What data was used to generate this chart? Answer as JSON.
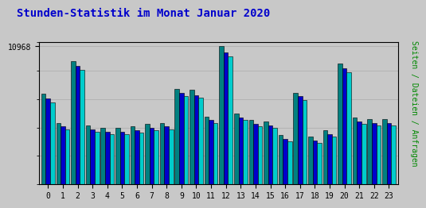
{
  "title": "Stunden-Statistik im Monat Januar 2020",
  "hours": [
    0,
    1,
    2,
    3,
    4,
    5,
    6,
    7,
    8,
    9,
    10,
    11,
    12,
    13,
    14,
    15,
    16,
    17,
    18,
    19,
    20,
    21,
    22,
    23
  ],
  "seiten": [
    7200,
    4900,
    9800,
    4700,
    4500,
    4500,
    4600,
    4800,
    4900,
    7600,
    7500,
    5400,
    10968,
    5600,
    5100,
    5000,
    3900,
    7300,
    3800,
    4300,
    9600,
    5300,
    5200,
    5200
  ],
  "dateien": [
    6800,
    4600,
    9400,
    4400,
    4200,
    4200,
    4300,
    4500,
    4600,
    7300,
    7100,
    5100,
    10500,
    5300,
    4800,
    4700,
    3600,
    7000,
    3500,
    4000,
    9200,
    5000,
    4900,
    4900
  ],
  "anfragen": [
    6500,
    4400,
    9100,
    4200,
    4000,
    4000,
    4100,
    4300,
    4400,
    7000,
    6900,
    4900,
    10200,
    5100,
    4600,
    4500,
    3400,
    6700,
    3300,
    3800,
    8900,
    4800,
    4700,
    4700
  ],
  "color_seiten": "#008080",
  "color_dateien": "#0000cc",
  "color_anfragen": "#00cccc",
  "background_chart": "#c8c8c8",
  "background_outer": "#c8c8c8",
  "title_color": "#0000cc",
  "ylabel_color": "#008800",
  "ytick_label": "10968",
  "ytick_value": 10968,
  "ylim_max": 11300
}
